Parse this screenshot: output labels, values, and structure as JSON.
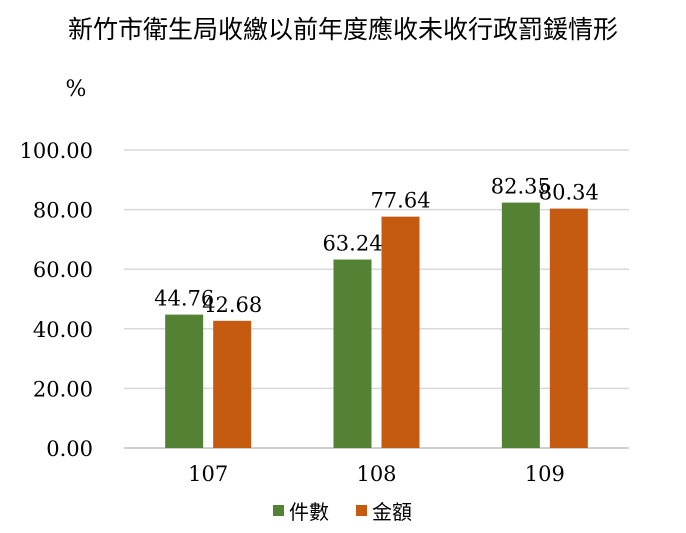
{
  "chart_data": {
    "type": "bar",
    "title": "新竹市衛生局收繳以前年度應收未收行政罰鍰情形",
    "ylabel": "%",
    "xlabel": "",
    "categories": [
      "107",
      "108",
      "109"
    ],
    "series": [
      {
        "name": "件數",
        "values": [
          44.76,
          63.24,
          82.35
        ],
        "color": "#548235"
      },
      {
        "name": "金額",
        "values": [
          42.68,
          77.64,
          80.34
        ],
        "color": "#C55A11"
      }
    ],
    "ylim": [
      0,
      100
    ],
    "yticks": [
      0,
      20,
      40,
      60,
      80,
      100
    ],
    "ytick_labels": [
      "0.00",
      "20.00",
      "40.00",
      "60.00",
      "80.00",
      "100.00"
    ],
    "value_labels": [
      [
        "44.76",
        "63.24",
        "82.35"
      ],
      [
        "42.68",
        "77.64",
        "80.34"
      ]
    ],
    "grid": true,
    "gridline_color": "#d9d9d9",
    "legend_position": "bottom"
  }
}
